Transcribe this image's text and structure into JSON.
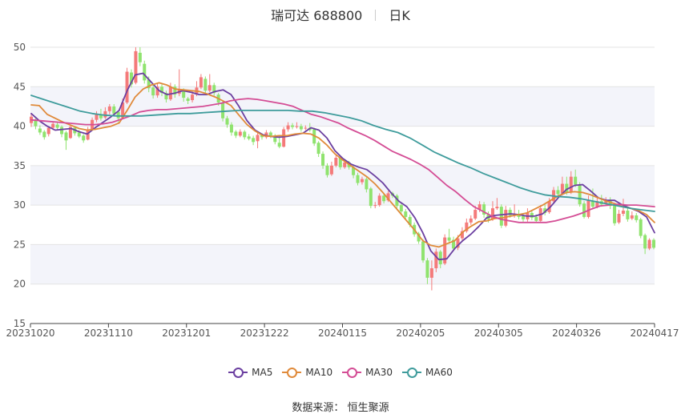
{
  "header": {
    "title": "瑞可达 688800",
    "period": "日K"
  },
  "source": {
    "label": "数据来源：",
    "name": "恒生聚源"
  },
  "colors": {
    "up": "#f47a7a",
    "down": "#8fe36e",
    "band": "#f3f4fa",
    "grid": "#e3e3e3"
  },
  "chart_data": {
    "type": "candlestick",
    "title": "瑞可达 688800 日K",
    "x_tick_labels": [
      "20231020",
      "20231110",
      "20231201",
      "20231222",
      "20240115",
      "20240205",
      "20240305",
      "20240326",
      "20240417"
    ],
    "y_ticks": [
      15,
      20,
      25,
      30,
      35,
      40,
      45,
      50
    ],
    "ylim": [
      15,
      50
    ],
    "series": [
      {
        "name": "MA5",
        "color": "#6b3fa0",
        "values": [
          41.6,
          40.7,
          40.0,
          39.5,
          39.6,
          39.7,
          39.3,
          39.0,
          39.8,
          40.5,
          41.2,
          42.0,
          44.5,
          46.5,
          46.7,
          45.6,
          44.5,
          44.0,
          44.2,
          44.5,
          44.3,
          44.0,
          44.0,
          44.4,
          44.6,
          44.0,
          42.5,
          40.7,
          39.5,
          38.9,
          38.7,
          38.6,
          38.7,
          38.9,
          39.1,
          39.8,
          39.5,
          38.5,
          36.9,
          35.9,
          35.2,
          34.8,
          34.5,
          33.7,
          32.8,
          31.6,
          30.5,
          29.8,
          28.4,
          26.5,
          24.2,
          23.1,
          23.2,
          24.5,
          25.5,
          26.3,
          27.3,
          28.4,
          28.7,
          28.8,
          28.9,
          28.8,
          28.6,
          28.6,
          28.9,
          29.8,
          31.0,
          32.0,
          32.5,
          32.6,
          31.8,
          30.9,
          30.6,
          30.6,
          30.0,
          29.6,
          29.2,
          28.5,
          26.5
        ]
      },
      {
        "name": "MA10",
        "color": "#e08a3a",
        "values": [
          42.7,
          42.6,
          41.5,
          41.0,
          40.5,
          40.1,
          39.7,
          39.5,
          39.6,
          39.8,
          40.0,
          40.4,
          42.0,
          43.7,
          44.7,
          45.2,
          45.5,
          45.2,
          44.7,
          44.6,
          44.5,
          44.4,
          44.1,
          43.7,
          43.2,
          42.6,
          41.4,
          40.2,
          39.4,
          38.8,
          38.7,
          38.8,
          38.8,
          39.0,
          39.1,
          39.0,
          38.5,
          37.6,
          36.5,
          35.7,
          35.0,
          34.3,
          33.6,
          32.7,
          31.6,
          30.4,
          29.2,
          28.0,
          26.8,
          25.5,
          24.9,
          24.7,
          25.1,
          25.5,
          26.6,
          27.3,
          27.9,
          28.0,
          28.3,
          28.4,
          28.6,
          28.8,
          29.0,
          29.5,
          30.0,
          30.6,
          31.2,
          31.6,
          31.7,
          31.6,
          31.3,
          30.9,
          30.5,
          30.2,
          29.8,
          29.6,
          29.3,
          28.8,
          27.8
        ]
      },
      {
        "name": "MA30",
        "color": "#d44d95",
        "values": [
          40.8,
          40.7,
          40.6,
          40.5,
          40.4,
          40.3,
          40.2,
          40.2,
          40.3,
          40.5,
          40.9,
          41.3,
          41.8,
          42.0,
          42.1,
          42.1,
          42.2,
          42.3,
          42.4,
          42.5,
          42.7,
          42.9,
          43.2,
          43.4,
          43.5,
          43.4,
          43.2,
          43.0,
          42.8,
          42.5,
          42.0,
          41.5,
          41.2,
          40.8,
          40.4,
          39.8,
          39.3,
          38.8,
          38.2,
          37.5,
          36.8,
          36.3,
          35.8,
          35.2,
          34.5,
          33.5,
          32.5,
          31.7,
          30.7,
          29.8,
          29.2,
          28.6,
          28.2,
          28.0,
          27.8,
          27.8,
          27.8,
          27.8,
          28.0,
          28.3,
          28.6,
          29.0,
          29.5,
          29.9,
          30.0,
          30.1,
          30.0,
          30.0,
          29.9,
          29.8
        ]
      },
      {
        "name": "MA60",
        "color": "#3f9c9c",
        "values": [
          43.9,
          43.4,
          42.9,
          42.4,
          41.9,
          41.6,
          41.4,
          41.3,
          41.3,
          41.3,
          41.4,
          41.5,
          41.6,
          41.6,
          41.7,
          41.8,
          41.9,
          42.0,
          42.0,
          42.0,
          42.0,
          42.0,
          41.9,
          41.9,
          41.7,
          41.4,
          41.1,
          40.7,
          40.1,
          39.6,
          39.2,
          38.5,
          37.6,
          36.7,
          36.0,
          35.3,
          34.7,
          34.0,
          33.4,
          32.8,
          32.2,
          31.7,
          31.3,
          31.1,
          31.0,
          30.8,
          30.5,
          30.2,
          29.9,
          29.6,
          29.4,
          29.2
        ]
      }
    ],
    "candles": [
      [
        40.4,
        41.2,
        39.9,
        41.7
      ],
      [
        40.8,
        40.0,
        39.6,
        41.0
      ],
      [
        39.7,
        39.2,
        38.9,
        40.1
      ],
      [
        39.3,
        38.6,
        38.3,
        39.5
      ],
      [
        39.0,
        39.8,
        38.7,
        40.0
      ],
      [
        39.8,
        40.3,
        39.5,
        40.6
      ],
      [
        40.2,
        39.8,
        39.6,
        40.5
      ],
      [
        39.9,
        39.0,
        38.6,
        40.1
      ],
      [
        39.2,
        38.2,
        37.0,
        39.4
      ],
      [
        38.5,
        39.9,
        38.4,
        40.2
      ],
      [
        39.8,
        39.1,
        38.8,
        40.0
      ],
      [
        39.2,
        38.7,
        38.5,
        39.5
      ],
      [
        38.8,
        38.2,
        37.9,
        39.0
      ],
      [
        38.3,
        39.6,
        38.2,
        39.9
      ],
      [
        39.6,
        40.8,
        39.5,
        41.1
      ],
      [
        40.8,
        41.5,
        40.5,
        41.9
      ],
      [
        41.5,
        41.0,
        40.7,
        42.2
      ],
      [
        41.1,
        41.9,
        40.9,
        42.4
      ],
      [
        41.9,
        42.5,
        41.5,
        42.8
      ],
      [
        42.5,
        41.6,
        41.3,
        42.8
      ],
      [
        41.8,
        41.0,
        40.5,
        42.0
      ],
      [
        41.1,
        43.0,
        41.0,
        43.5
      ],
      [
        43.0,
        46.9,
        42.8,
        47.4
      ],
      [
        46.8,
        45.3,
        44.9,
        47.2
      ],
      [
        45.5,
        49.5,
        45.3,
        50.0
      ],
      [
        49.3,
        48.1,
        47.6,
        50.0
      ],
      [
        47.9,
        45.8,
        45.4,
        48.3
      ],
      [
        45.9,
        44.8,
        44.3,
        46.3
      ],
      [
        44.9,
        43.9,
        43.5,
        45.3
      ],
      [
        43.9,
        45.0,
        43.6,
        45.4
      ],
      [
        45.0,
        44.2,
        43.8,
        45.3
      ],
      [
        44.2,
        43.4,
        43.0,
        44.5
      ],
      [
        43.4,
        45.0,
        43.2,
        45.5
      ],
      [
        45.0,
        44.0,
        43.6,
        45.3
      ],
      [
        44.1,
        44.6,
        43.8,
        47.2
      ],
      [
        44.6,
        43.6,
        43.1,
        44.8
      ],
      [
        43.5,
        43.2,
        42.8,
        43.7
      ],
      [
        43.3,
        44.0,
        43.0,
        44.5
      ],
      [
        44.0,
        44.9,
        43.8,
        45.7
      ],
      [
        44.9,
        46.2,
        44.7,
        46.6
      ],
      [
        46.0,
        44.5,
        44.1,
        46.3
      ],
      [
        44.5,
        45.2,
        44.3,
        46.6
      ],
      [
        45.2,
        44.2,
        43.8,
        45.5
      ],
      [
        44.0,
        43.0,
        42.6,
        44.2
      ],
      [
        43.0,
        41.0,
        40.6,
        43.2
      ],
      [
        41.0,
        40.2,
        39.8,
        41.3
      ],
      [
        40.2,
        39.2,
        38.8,
        40.5
      ],
      [
        39.3,
        38.8,
        38.5,
        39.5
      ],
      [
        38.8,
        39.3,
        38.6,
        39.6
      ],
      [
        39.3,
        38.6,
        38.3,
        39.5
      ],
      [
        38.7,
        38.4,
        38.2,
        39.0
      ],
      [
        38.5,
        38.0,
        37.6,
        38.8
      ],
      [
        38.1,
        38.9,
        37.2,
        39.2
      ],
      [
        38.9,
        38.6,
        38.3,
        39.1
      ],
      [
        38.6,
        39.2,
        38.4,
        39.5
      ],
      [
        39.2,
        38.8,
        38.5,
        39.4
      ],
      [
        38.8,
        38.0,
        37.7,
        39.0
      ],
      [
        37.9,
        37.4,
        37.2,
        38.8
      ],
      [
        37.4,
        39.6,
        37.3,
        39.9
      ],
      [
        39.6,
        40.1,
        39.3,
        40.5
      ],
      [
        40.1,
        39.9,
        39.6,
        40.4
      ],
      [
        40.0,
        40.0,
        39.7,
        40.5
      ],
      [
        40.0,
        39.6,
        39.3,
        40.3
      ],
      [
        39.7,
        39.8,
        39.5,
        40.1
      ],
      [
        39.8,
        39.5,
        39.3,
        40.4
      ],
      [
        39.6,
        37.8,
        37.5,
        39.8
      ],
      [
        37.9,
        36.5,
        36.1,
        38.1
      ],
      [
        36.5,
        35.0,
        34.6,
        36.8
      ],
      [
        35.0,
        33.8,
        33.5,
        35.3
      ],
      [
        33.9,
        35.0,
        33.7,
        35.5
      ],
      [
        35.0,
        36.0,
        34.8,
        36.4
      ],
      [
        36.0,
        34.8,
        34.5,
        36.2
      ],
      [
        34.8,
        35.4,
        34.6,
        35.8
      ],
      [
        35.4,
        34.8,
        34.5,
        35.6
      ],
      [
        34.8,
        33.8,
        33.4,
        35.0
      ],
      [
        33.8,
        32.8,
        32.5,
        34.1
      ],
      [
        32.9,
        33.3,
        32.6,
        33.6
      ],
      [
        33.3,
        32.0,
        31.6,
        33.5
      ],
      [
        32.1,
        29.9,
        29.6,
        32.3
      ],
      [
        29.9,
        30.0,
        29.6,
        30.4
      ],
      [
        30.0,
        31.2,
        29.8,
        31.5
      ],
      [
        31.2,
        30.5,
        30.2,
        31.5
      ],
      [
        30.6,
        31.5,
        30.4,
        31.8
      ],
      [
        31.5,
        31.2,
        30.9,
        31.7
      ],
      [
        31.2,
        29.9,
        29.6,
        31.4
      ],
      [
        30.0,
        29.2,
        28.9,
        30.2
      ],
      [
        29.2,
        28.5,
        28.2,
        29.5
      ],
      [
        28.5,
        27.5,
        27.2,
        28.8
      ],
      [
        27.5,
        26.3,
        26.0,
        27.8
      ],
      [
        26.4,
        25.4,
        25.1,
        26.6
      ],
      [
        25.4,
        23.0,
        22.7,
        25.7
      ],
      [
        23.0,
        20.8,
        20.0,
        23.3
      ],
      [
        20.8,
        22.0,
        19.2,
        23.0
      ],
      [
        22.0,
        24.1,
        21.5,
        24.5
      ],
      [
        24.1,
        22.5,
        22.0,
        24.3
      ],
      [
        22.6,
        25.9,
        22.4,
        26.3
      ],
      [
        25.9,
        25.5,
        25.1,
        27.0
      ],
      [
        25.6,
        24.5,
        24.2,
        26.0
      ],
      [
        24.6,
        25.8,
        24.3,
        26.2
      ],
      [
        25.8,
        26.7,
        25.5,
        27.2
      ],
      [
        26.7,
        27.8,
        26.5,
        28.3
      ],
      [
        27.8,
        28.3,
        27.5,
        28.7
      ],
      [
        28.3,
        29.4,
        28.1,
        29.9
      ],
      [
        29.4,
        30.1,
        29.1,
        30.5
      ],
      [
        30.1,
        28.8,
        28.4,
        30.4
      ],
      [
        28.8,
        28.2,
        27.8,
        29.2
      ],
      [
        28.2,
        29.6,
        28.0,
        30.5
      ],
      [
        29.6,
        29.8,
        29.4,
        30.9
      ],
      [
        29.8,
        27.4,
        27.1,
        30.1
      ],
      [
        27.4,
        29.4,
        27.2,
        29.9
      ],
      [
        29.4,
        28.7,
        28.4,
        29.7
      ],
      [
        28.8,
        28.9,
        28.4,
        30.1
      ],
      [
        28.9,
        28.5,
        28.2,
        29.4
      ],
      [
        28.6,
        28.2,
        27.9,
        28.9
      ],
      [
        28.2,
        29.0,
        27.9,
        29.6
      ],
      [
        29.0,
        28.4,
        28.1,
        29.4
      ],
      [
        28.5,
        28.0,
        27.8,
        28.8
      ],
      [
        28.0,
        29.6,
        27.9,
        30.0
      ],
      [
        29.6,
        29.0,
        28.7,
        30.1
      ],
      [
        29.1,
        30.5,
        28.9,
        30.9
      ],
      [
        30.5,
        31.9,
        30.3,
        32.3
      ],
      [
        31.9,
        31.4,
        31.0,
        32.4
      ],
      [
        31.5,
        32.7,
        31.2,
        33.6
      ],
      [
        32.7,
        31.6,
        31.3,
        33.6
      ],
      [
        31.6,
        33.6,
        31.4,
        34.3
      ],
      [
        33.6,
        32.6,
        32.3,
        34.5
      ],
      [
        32.6,
        30.1,
        29.8,
        32.9
      ],
      [
        30.2,
        28.5,
        28.3,
        30.5
      ],
      [
        28.5,
        30.6,
        28.3,
        31.2
      ],
      [
        30.5,
        29.8,
        29.5,
        32.1
      ],
      [
        29.8,
        30.5,
        29.6,
        31.0
      ],
      [
        30.5,
        30.1,
        29.8,
        31.3
      ],
      [
        30.2,
        30.6,
        29.9,
        31.0
      ],
      [
        30.6,
        29.9,
        29.5,
        31.0
      ],
      [
        29.9,
        27.7,
        27.4,
        30.2
      ],
      [
        27.8,
        28.9,
        27.6,
        29.4
      ],
      [
        28.9,
        29.3,
        28.6,
        30.8
      ],
      [
        29.3,
        28.2,
        27.9,
        29.6
      ],
      [
        28.3,
        28.7,
        28.1,
        29.2
      ],
      [
        28.7,
        28.1,
        27.8,
        29.0
      ],
      [
        28.2,
        26.1,
        25.8,
        28.4
      ],
      [
        26.2,
        24.5,
        23.8,
        26.4
      ],
      [
        24.5,
        25.6,
        24.3,
        25.8
      ],
      [
        25.6,
        24.6,
        24.4,
        25.8
      ]
    ]
  }
}
